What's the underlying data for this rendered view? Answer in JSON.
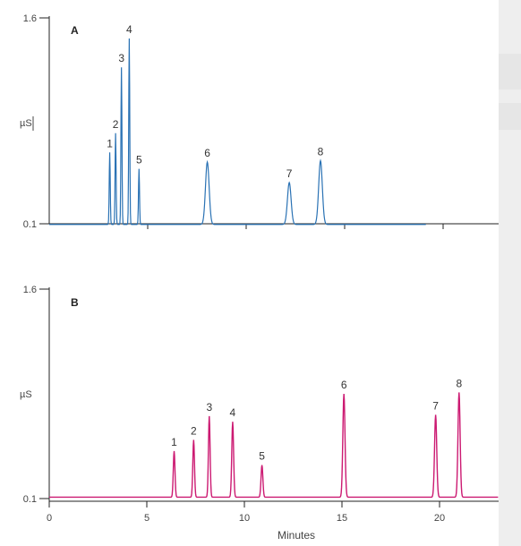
{
  "chart_data": [
    {
      "type": "line",
      "panel_label": "A",
      "ylabel": "µS",
      "ylim": [
        0.1,
        1.6
      ],
      "y_ticks": [
        "1.6",
        "0.1"
      ],
      "color": "#2a72b4",
      "baseline": 0.095,
      "trace_x_range": [
        0,
        19.3
      ],
      "peaks": [
        {
          "label": "1",
          "x": 3.1,
          "y": 0.62,
          "width": 0.06
        },
        {
          "label": "2",
          "x": 3.4,
          "y": 0.76,
          "width": 0.06
        },
        {
          "label": "3",
          "x": 3.7,
          "y": 1.24,
          "width": 0.06
        },
        {
          "label": "4",
          "x": 4.1,
          "y": 1.45,
          "width": 0.06
        },
        {
          "label": "5",
          "x": 4.6,
          "y": 0.5,
          "width": 0.06
        },
        {
          "label": "6",
          "x": 8.1,
          "y": 0.55,
          "width": 0.22
        },
        {
          "label": "7",
          "x": 12.3,
          "y": 0.4,
          "width": 0.22
        },
        {
          "label": "8",
          "x": 13.9,
          "y": 0.56,
          "width": 0.22
        }
      ]
    },
    {
      "type": "line",
      "panel_label": "B",
      "ylabel": "µS",
      "xlabel": "Minutes",
      "ylim": [
        0.1,
        1.6
      ],
      "y_ticks": [
        "1.6",
        "0.1"
      ],
      "xlim": [
        0,
        23
      ],
      "x_ticks": [
        0,
        5,
        10,
        15,
        20
      ],
      "color": "#cc1a72",
      "baseline": 0.11,
      "trace_x_range": [
        0,
        23
      ],
      "peaks": [
        {
          "label": "1",
          "x": 6.4,
          "y": 0.44,
          "width": 0.1
        },
        {
          "label": "2",
          "x": 7.4,
          "y": 0.52,
          "width": 0.1
        },
        {
          "label": "3",
          "x": 8.2,
          "y": 0.69,
          "width": 0.1
        },
        {
          "label": "4",
          "x": 9.4,
          "y": 0.65,
          "width": 0.11
        },
        {
          "label": "5",
          "x": 10.9,
          "y": 0.34,
          "width": 0.11
        },
        {
          "label": "6",
          "x": 15.1,
          "y": 0.85,
          "width": 0.13
        },
        {
          "label": "7",
          "x": 19.8,
          "y": 0.7,
          "width": 0.13
        },
        {
          "label": "8",
          "x": 21.0,
          "y": 0.86,
          "width": 0.13
        }
      ]
    }
  ]
}
